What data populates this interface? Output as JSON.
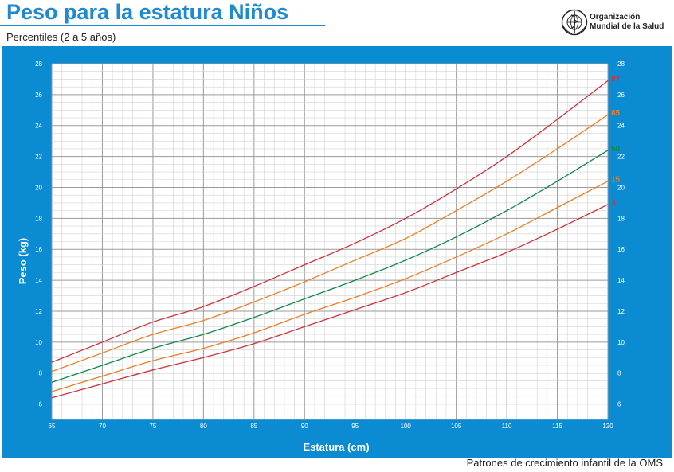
{
  "header": {
    "title": "Peso para la estatura Niños",
    "subtitle": "Percentiles (2 a 5 años)",
    "org_line1": "Organización",
    "org_line2": "Mundial de la Salud",
    "footer": "Patrones de crecimiento infantil de la OMS"
  },
  "colors": {
    "title": "#1e8ad1",
    "panel": "#0a8bd2",
    "p97": "#d2323c",
    "p85": "#ee7d22",
    "p50": "#0e8a45",
    "p15": "#ee7d22",
    "p3": "#d2323c"
  },
  "chart_data": {
    "type": "line",
    "title": "Peso para la estatura Niños",
    "subtitle": "Percentiles (2 a 5 años)",
    "xlabel": "Estatura (cm)",
    "ylabel": "Peso (kg)",
    "xlim": [
      65,
      120
    ],
    "ylim": [
      5,
      28
    ],
    "xticks": [
      65,
      70,
      75,
      80,
      85,
      90,
      95,
      100,
      105,
      110,
      115,
      120
    ],
    "yticks": [
      6,
      8,
      10,
      12,
      14,
      16,
      18,
      20,
      22,
      24,
      26,
      28
    ],
    "grid": true,
    "x": [
      65,
      70,
      75,
      80,
      85,
      90,
      95,
      100,
      105,
      110,
      115,
      120
    ],
    "series": [
      {
        "name": "97",
        "color": "#d2323c",
        "values": [
          8.7,
          10.0,
          11.3,
          12.3,
          13.6,
          15.0,
          16.4,
          18.0,
          19.9,
          22.0,
          24.4,
          26.9
        ]
      },
      {
        "name": "85",
        "color": "#ee7d22",
        "values": [
          8.1,
          9.3,
          10.5,
          11.4,
          12.6,
          13.9,
          15.3,
          16.7,
          18.5,
          20.4,
          22.5,
          24.7
        ]
      },
      {
        "name": "50",
        "color": "#0e8a45",
        "values": [
          7.4,
          8.5,
          9.6,
          10.5,
          11.6,
          12.8,
          14.0,
          15.3,
          16.8,
          18.5,
          20.4,
          22.4
        ]
      },
      {
        "name": "15",
        "color": "#ee7d22",
        "values": [
          6.8,
          7.8,
          8.8,
          9.6,
          10.6,
          11.8,
          12.9,
          14.1,
          15.5,
          17.0,
          18.7,
          20.4
        ]
      },
      {
        "name": "3",
        "color": "#d2323c",
        "values": [
          6.4,
          7.3,
          8.2,
          9.0,
          9.9,
          11.0,
          12.1,
          13.2,
          14.5,
          15.8,
          17.3,
          18.9
        ]
      }
    ]
  }
}
